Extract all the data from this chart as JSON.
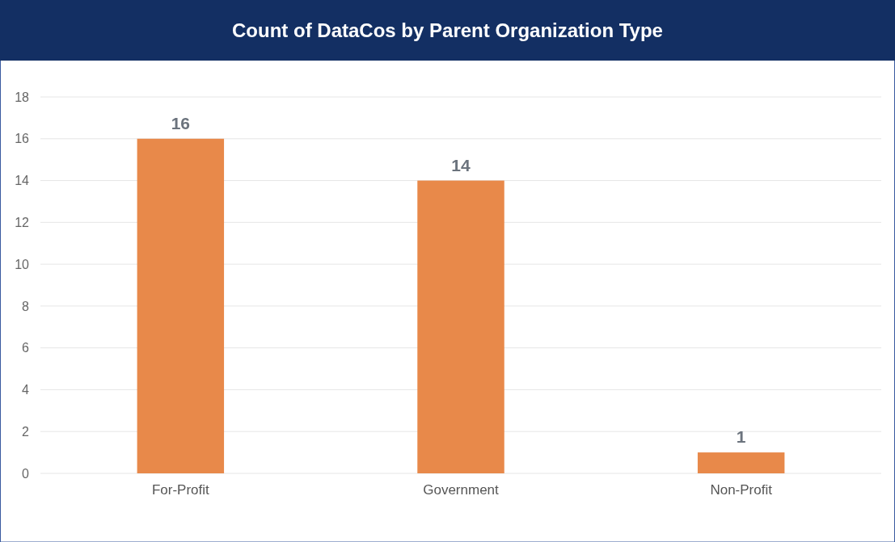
{
  "chart_data": {
    "type": "bar",
    "title": "Count of DataCos by Parent Organization Type",
    "categories": [
      "For-Profit",
      "Government",
      "Non-Profit"
    ],
    "values": [
      16,
      14,
      1
    ],
    "color": "#e8894a",
    "ylim": [
      0,
      18
    ],
    "yticks": [
      0,
      2,
      4,
      6,
      8,
      10,
      12,
      14,
      16,
      18
    ],
    "grid": "y",
    "data_labels": true
  }
}
